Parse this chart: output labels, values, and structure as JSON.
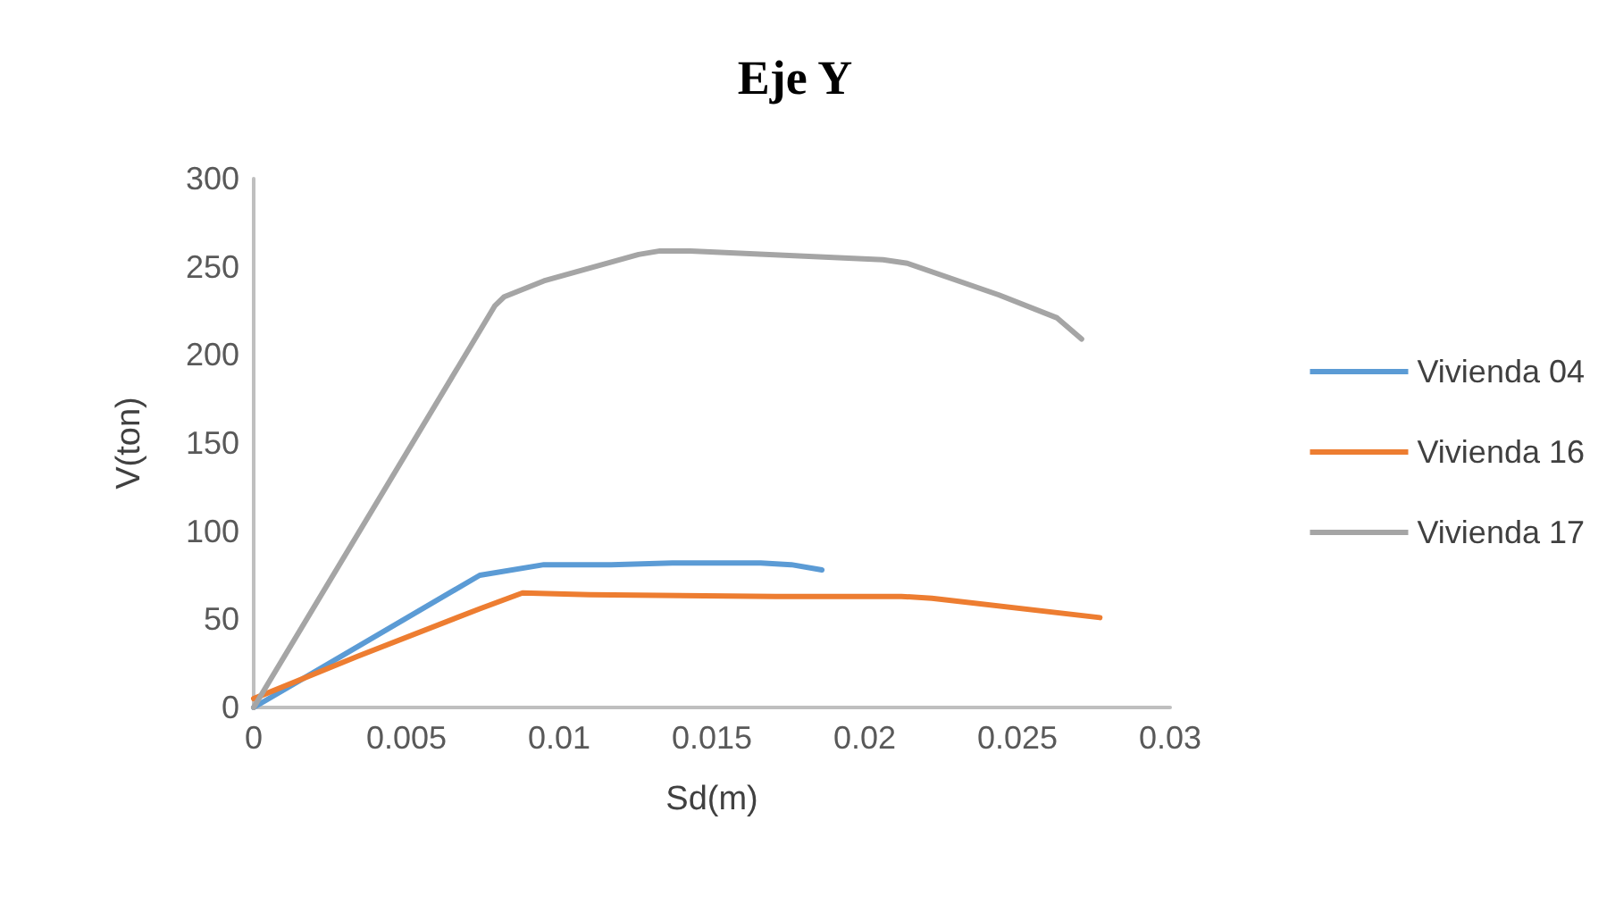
{
  "chart_data": {
    "type": "line",
    "title": "Eje Y",
    "xlabel": "Sd(m)",
    "ylabel": "V(ton)",
    "xlim": [
      0,
      0.03
    ],
    "xticks": [
      0,
      0.005,
      0.01,
      0.015,
      0.02,
      0.025,
      0.03
    ],
    "ylim": [
      0,
      300
    ],
    "yticks": [
      0,
      50,
      100,
      150,
      200,
      250,
      300
    ],
    "grid": false,
    "legend": "right",
    "marker": "none",
    "line_style": "solid",
    "series": [
      {
        "name": "Vivienda 04",
        "color": "#5b9bd5",
        "x": [
          0,
          0.0074,
          0.0095,
          0.0117,
          0.0137,
          0.0166,
          0.0176,
          0.0186
        ],
        "values": [
          0,
          75,
          81,
          81,
          82,
          82,
          81,
          78
        ]
      },
      {
        "name": "Vivienda 16",
        "color": "#ed7d31",
        "x": [
          0,
          0.0034,
          0.0074,
          0.0088,
          0.011,
          0.0171,
          0.0212,
          0.0222,
          0.0277
        ],
        "values": [
          5,
          29,
          56,
          65,
          64,
          63,
          63,
          62,
          51
        ]
      },
      {
        "name": "Vivienda 17",
        "color": "#a5a5a5",
        "x": [
          0,
          0.0079,
          0.0082,
          0.0095,
          0.0126,
          0.0133,
          0.0143,
          0.0206,
          0.0214,
          0.0244,
          0.0263,
          0.0271
        ],
        "values": [
          0,
          228,
          233,
          242,
          257,
          259,
          259,
          254,
          252,
          234,
          221,
          209
        ]
      }
    ]
  }
}
